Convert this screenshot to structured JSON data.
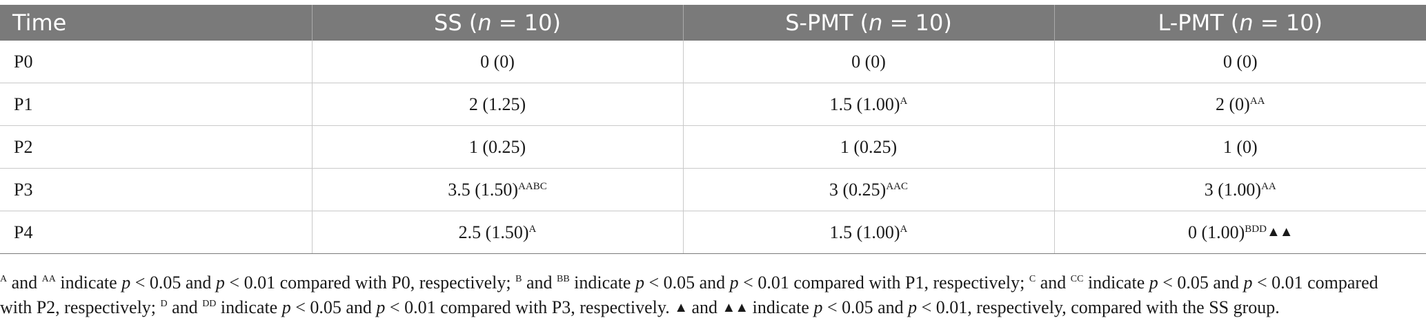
{
  "table": {
    "headers": [
      {
        "pre": "Time",
        "n": "",
        "post": ""
      },
      {
        "pre": "SS (",
        "n": "n",
        "post": " = 10)"
      },
      {
        "pre": "S-PMT (",
        "n": "n",
        "post": " = 10)"
      },
      {
        "pre": "L-PMT (",
        "n": "n",
        "post": " = 10)"
      }
    ],
    "rows": [
      {
        "time": "P0",
        "cells": [
          {
            "v": "0 (0)",
            "s": "",
            "t": ""
          },
          {
            "v": "0 (0)",
            "s": "",
            "t": ""
          },
          {
            "v": "0 (0)",
            "s": "",
            "t": ""
          }
        ]
      },
      {
        "time": "P1",
        "cells": [
          {
            "v": "2 (1.25)",
            "s": "",
            "t": ""
          },
          {
            "v": "1.5 (1.00)",
            "s": "A",
            "t": ""
          },
          {
            "v": "2 (0)",
            "s": "AA",
            "t": ""
          }
        ]
      },
      {
        "time": "P2",
        "cells": [
          {
            "v": "1 (0.25)",
            "s": "",
            "t": ""
          },
          {
            "v": "1 (0.25)",
            "s": "",
            "t": ""
          },
          {
            "v": "1 (0)",
            "s": "",
            "t": ""
          }
        ]
      },
      {
        "time": "P3",
        "cells": [
          {
            "v": "3.5 (1.50)",
            "s": "AABC",
            "t": ""
          },
          {
            "v": "3 (0.25)",
            "s": "AAC",
            "t": ""
          },
          {
            "v": "3 (1.00)",
            "s": "AA",
            "t": ""
          }
        ]
      },
      {
        "time": "P4",
        "cells": [
          {
            "v": "2.5 (1.50)",
            "s": "A",
            "t": ""
          },
          {
            "v": "1.5 (1.00)",
            "s": "A",
            "t": ""
          },
          {
            "v": "0 (1.00)",
            "s": "BDD",
            "t": "▲▲"
          }
        ]
      }
    ]
  },
  "footnote": {
    "sA": "A",
    "and1": " and ",
    "sAA": "AA",
    "t1": " indicate ",
    "p": "p",
    "lt05": " < 0.05 and ",
    "lt01": " < 0.01 compared with P0, respectively; ",
    "sB": "B",
    "and2": " and ",
    "sBB": "BB",
    "t2": " indicate ",
    "lt05b": " < 0.05 and ",
    "lt01b": " < 0.01 compared with P1, respectively; ",
    "sC": "C",
    "and3": " and ",
    "sCC": "CC",
    "t3": " indicate ",
    "lt05c": " < 0.05 and ",
    "lt01c": " < 0.01 compared",
    "t3b": "with P2, respectively; ",
    "sD": "D",
    "and4": " and ",
    "sDD": "DD",
    "t4": " indicate ",
    "lt05d": " < 0.05 and ",
    "lt01d": " < 0.01 compared with P3, respectively. ",
    "tri1": "▲",
    "and5": " and ",
    "tri2": "▲▲",
    "t5": " indicate ",
    "lt05e": " < 0.05 and ",
    "lt01e": " < 0.01, respectively, compared with the SS group."
  }
}
